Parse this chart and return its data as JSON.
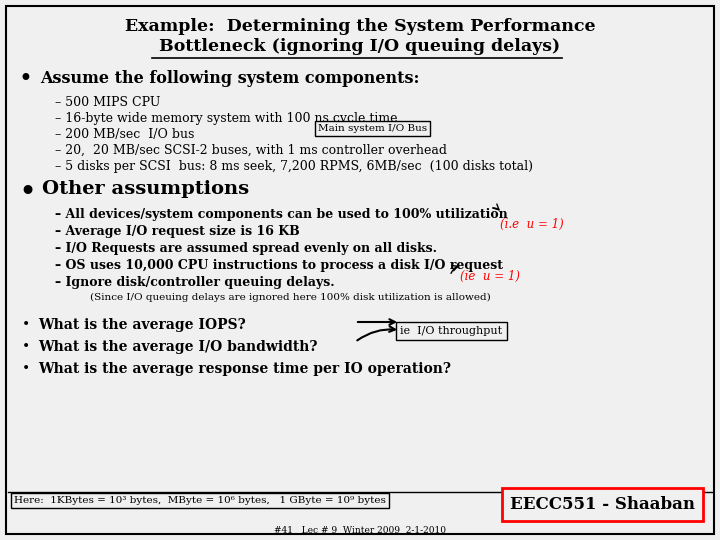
{
  "bg_color": "#f0f0f0",
  "title_line1": "Example:  Determining the System Performance",
  "title_line2": "Bottleneck (̲i̲g̲n̲o̲r̲i̲n̲g̲ ̲I̲/̲O̲ ̲q̲u̲e̲u̲i̲n̲g̲ ̲d̲e̲l̲a̲y̲s̲)",
  "title_line2_plain": "Bottleneck (ignoring I/O queuing delays)",
  "footer_left": "Here:  1KBytes = 10³ bytes,  MByte = 10⁶ bytes,   1 GByte = 10⁹ bytes",
  "footer_right": "EECC551 - Shaaban",
  "footer_small": "#41   Lec # 9  Winter 2009  2-1-2010",
  "sub1": [
    "500 MIPS CPU",
    "16-byte wide memory system with 100 ns cycle time",
    "200 MB/sec  I/O bus",
    "20,  20 MB/sec SCSI-2 buses, with 1 ms controller overhead",
    "5 disks per SCSI  bus: 8 ms seek, 7,200 RPMS, 6MB/sec  (100 disks total)"
  ],
  "sub2": [
    "All devices/system components can be used to 100% utilization",
    "Average I/O request size is 16 KB",
    "I/O Requests are assumed spread evenly on all disks.",
    "OS uses 10,000 CPU instructions to process a disk I/O request",
    "Ignore disk/controller queuing delays."
  ],
  "since_line": "(Since I/O queuing delays are ignored here 100% disk utilization is allowed)",
  "bullets3": [
    "What is the average IOPS?",
    "What is the average I/O bandwidth?",
    "What is the average response time per IO operation?"
  ]
}
